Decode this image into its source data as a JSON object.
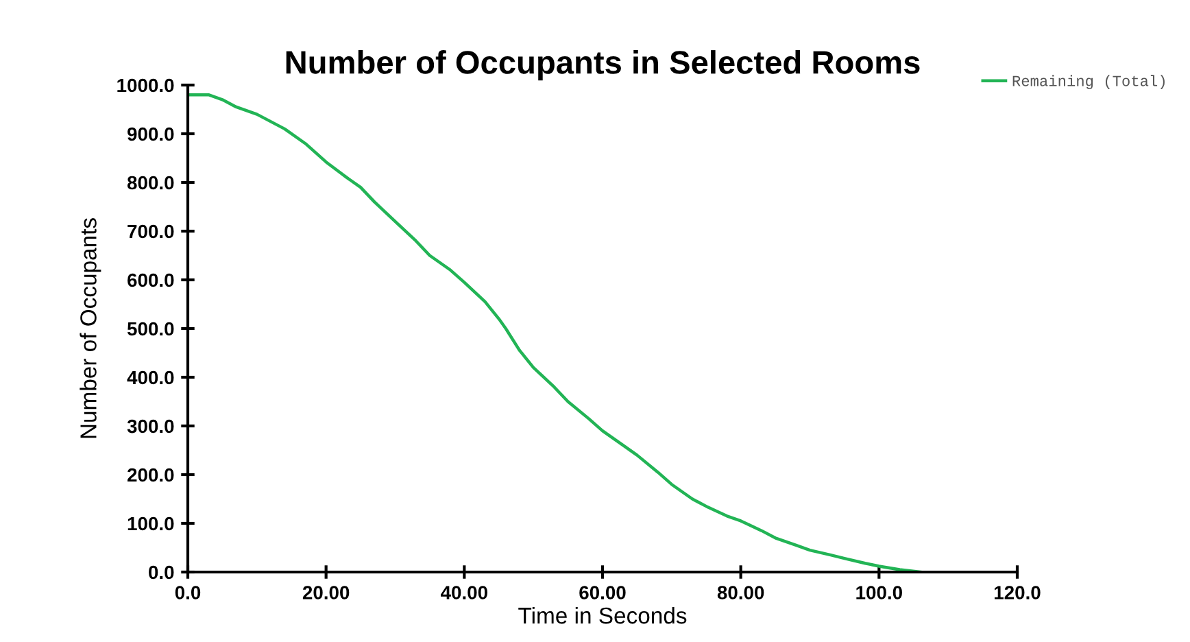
{
  "chart_data": {
    "type": "line",
    "title": "Number of Occupants in Selected Rooms",
    "xlabel": "Time in Seconds",
    "ylabel": "Number of Occupants",
    "x": [
      0,
      3,
      5,
      7,
      10,
      14,
      17,
      20,
      23,
      25,
      27,
      30,
      33,
      35,
      38,
      40,
      43,
      45,
      46,
      48,
      50,
      53,
      55,
      58,
      60,
      63,
      65,
      68,
      70,
      73,
      75,
      78,
      80,
      83,
      85,
      88,
      90,
      93,
      95,
      98,
      100,
      103,
      106
    ],
    "series": [
      {
        "name": "Remaining (Total)",
        "color": "#22b455",
        "values": [
          980,
          980,
          970,
          955,
          940,
          910,
          880,
          842,
          810,
          790,
          760,
          720,
          680,
          650,
          620,
          595,
          555,
          520,
          500,
          455,
          420,
          380,
          350,
          315,
          290,
          260,
          240,
          205,
          180,
          150,
          135,
          115,
          105,
          85,
          70,
          55,
          45,
          35,
          28,
          18,
          12,
          5,
          0
        ]
      }
    ],
    "xlim": [
      0,
      120
    ],
    "xticks": [
      {
        "value": 0,
        "label": "0.0"
      },
      {
        "value": 20,
        "label": "20.00"
      },
      {
        "value": 40,
        "label": "40.00"
      },
      {
        "value": 60,
        "label": "60.00"
      },
      {
        "value": 80,
        "label": "80.00"
      },
      {
        "value": 100,
        "label": "100.0"
      },
      {
        "value": 120,
        "label": "120.0"
      }
    ],
    "ylim": [
      0,
      1000
    ],
    "yticks": [
      {
        "value": 0,
        "label": "0.0"
      },
      {
        "value": 100,
        "label": "100.0"
      },
      {
        "value": 200,
        "label": "200.0"
      },
      {
        "value": 300,
        "label": "300.0"
      },
      {
        "value": 400,
        "label": "400.0"
      },
      {
        "value": 500,
        "label": "500.0"
      },
      {
        "value": 600,
        "label": "600.0"
      },
      {
        "value": 700,
        "label": "700.0"
      },
      {
        "value": 800,
        "label": "800.0"
      },
      {
        "value": 900,
        "label": "900.0"
      },
      {
        "value": 1000,
        "label": "1000.0"
      }
    ],
    "grid": false,
    "legend": "top right"
  }
}
